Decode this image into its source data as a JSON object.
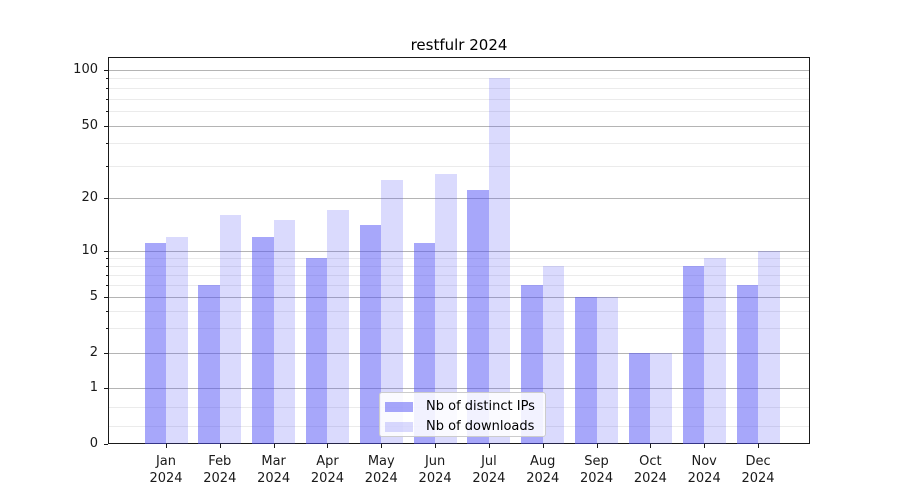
{
  "title": "restfulr 2024",
  "chart_data": {
    "type": "bar",
    "title": "restfulr 2024",
    "categories": [
      "Jan 2024",
      "Feb 2024",
      "Mar 2024",
      "Apr 2024",
      "May 2024",
      "Jun 2024",
      "Jul 2024",
      "Aug 2024",
      "Sep 2024",
      "Oct 2024",
      "Nov 2024",
      "Dec 2024"
    ],
    "month_labels": [
      "Jan",
      "Feb",
      "Mar",
      "Apr",
      "May",
      "Jun",
      "Jul",
      "Aug",
      "Sep",
      "Oct",
      "Nov",
      "Dec"
    ],
    "year_label": "2024",
    "series": [
      {
        "name": "Nb of distinct IPs",
        "values": [
          11,
          6,
          12,
          9,
          14,
          11,
          22,
          6,
          5,
          2,
          8,
          6
        ],
        "color": "rgba(80,80,245,0.50)"
      },
      {
        "name": "Nb of downloads",
        "values": [
          12,
          16,
          15,
          17,
          25,
          27,
          90,
          8,
          5,
          2,
          9,
          10
        ],
        "color": "rgba(80,80,245,0.21)"
      }
    ],
    "xlabel": "",
    "ylabel": "",
    "yscale": "symlog",
    "ylim": [
      0,
      118
    ],
    "yticks_major": [
      0,
      1,
      2,
      5,
      10,
      20,
      50,
      100
    ],
    "ytick_labels": [
      "0",
      "1",
      "2",
      "5",
      "10",
      "20",
      "50",
      "100"
    ],
    "yticks_minor": [
      0.33,
      0.66,
      3,
      4,
      6,
      7,
      8,
      9,
      30,
      40,
      60,
      70,
      80,
      90
    ],
    "grid": "horizontal major and minor gridlines",
    "legend_position": "lower center"
  },
  "colors": {
    "ips_bar": "rgba(80,80,245,0.50)",
    "downloads_bar": "rgba(80,80,245,0.21)",
    "grid_major": "#b4b4b4",
    "grid_minor": "#ebebeb",
    "spine": "#1a1a1a"
  },
  "legend": {
    "items": [
      {
        "label": "Nb of distinct IPs"
      },
      {
        "label": "Nb of downloads"
      }
    ]
  }
}
